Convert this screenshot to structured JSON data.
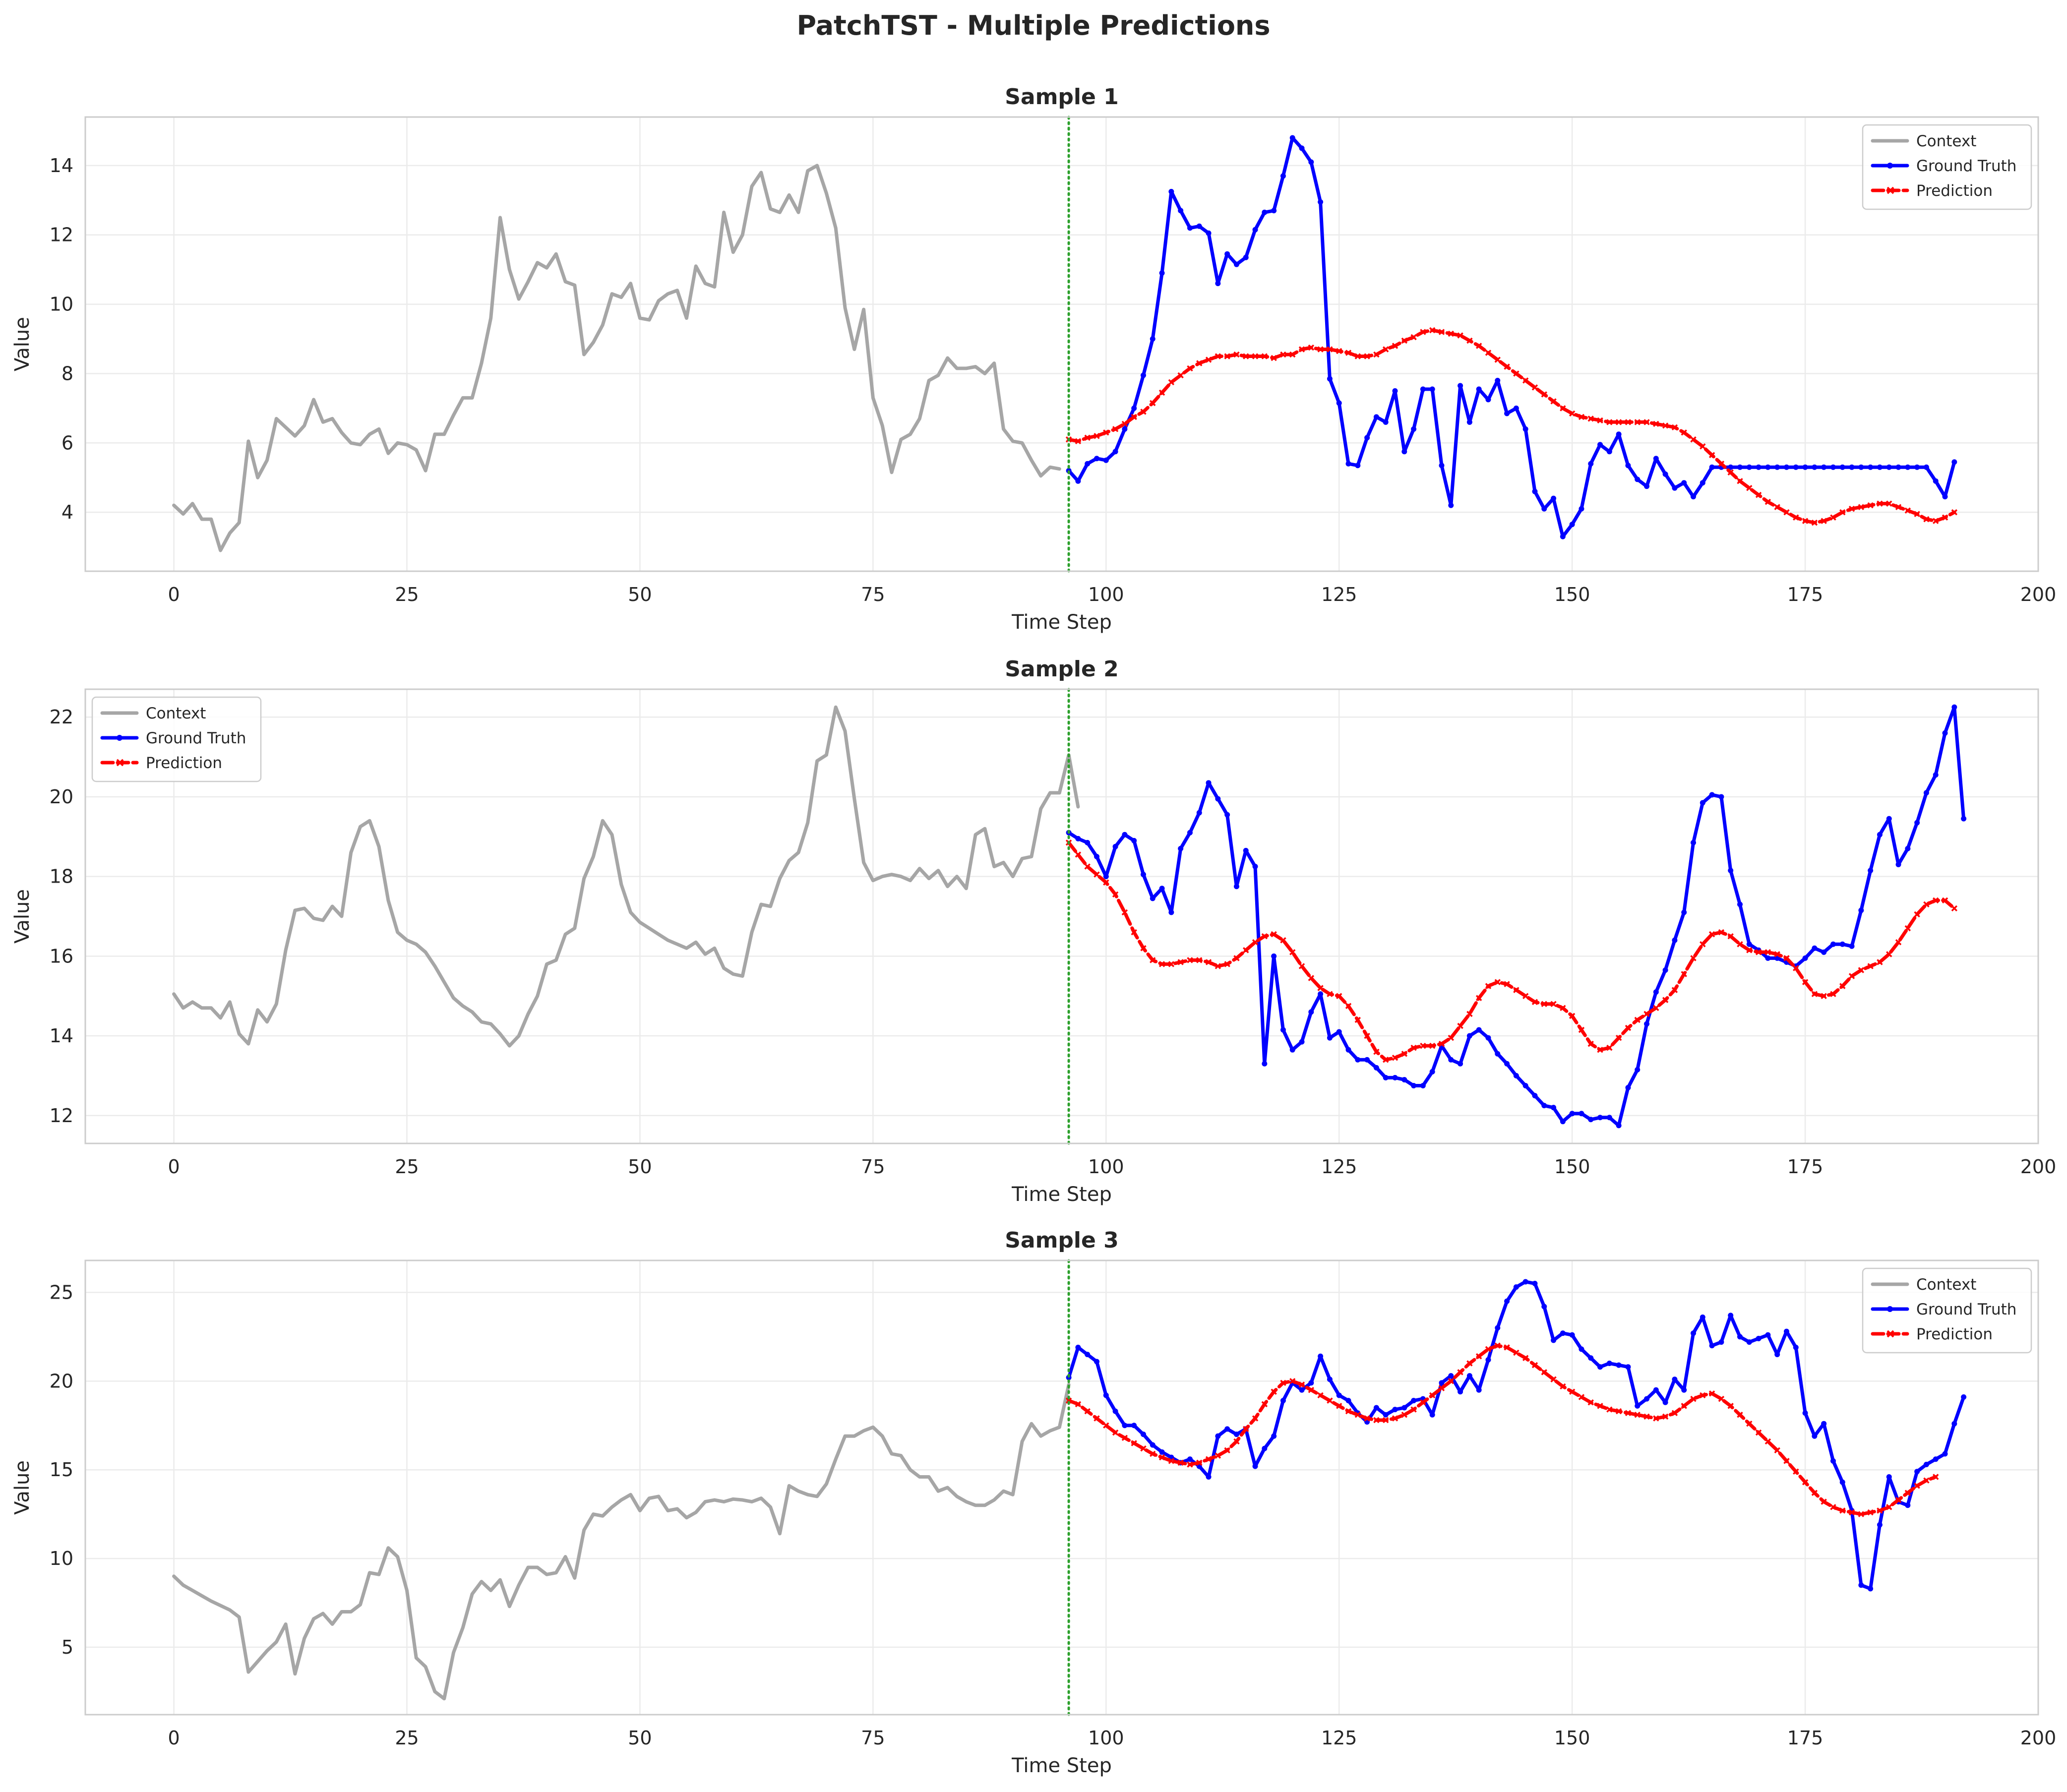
{
  "figure_title": "PatchTST - Multiple Predictions",
  "colors": {
    "context": "#a6a6a6",
    "ground_truth": "#0000ff",
    "prediction": "#ff0000",
    "forecast_start": "#2ca02c",
    "grid": "#ebebeb",
    "axes_edge": "#cccccc",
    "text": "#262626"
  },
  "chart_data": [
    {
      "type": "line",
      "title": "Sample 1",
      "xlabel": "Time Step",
      "ylabel": "Value",
      "xlim": [
        -9.5,
        200
      ],
      "ylim": [
        2.3,
        15.4
      ],
      "xticks": [
        0,
        25,
        50,
        75,
        100,
        125,
        150,
        175,
        200
      ],
      "yticks": [
        4,
        6,
        8,
        10,
        12,
        14
      ],
      "grid": true,
      "legend_position": "top-right",
      "forecast_start": 96,
      "series": [
        {
          "name": "Context",
          "style": "context",
          "x_start": 0,
          "values": [
            4.2,
            3.95,
            4.25,
            3.8,
            3.8,
            2.9,
            3.4,
            3.7,
            6.05,
            5.0,
            5.5,
            6.7,
            6.45,
            6.2,
            6.5,
            7.25,
            6.6,
            6.7,
            6.3,
            6.0,
            5.95,
            6.25,
            6.4,
            5.7,
            6.0,
            5.95,
            5.8,
            5.2,
            6.25,
            6.25,
            6.8,
            7.3,
            7.3,
            8.3,
            9.6,
            12.5,
            11.0,
            10.15,
            10.65,
            11.2,
            11.05,
            11.45,
            10.65,
            10.55,
            8.55,
            8.9,
            9.4,
            10.3,
            10.2,
            10.6,
            9.6,
            9.55,
            10.1,
            10.3,
            10.4,
            9.6,
            11.1,
            10.6,
            10.5,
            12.65,
            11.5,
            12.0,
            13.4,
            13.8,
            12.75,
            12.65,
            13.15,
            12.65,
            13.85,
            14.0,
            13.2,
            12.2,
            9.9,
            8.7,
            9.85,
            7.3,
            6.5,
            5.15,
            6.1,
            6.25,
            6.7,
            7.8,
            7.95,
            8.45,
            8.15,
            8.15,
            8.2,
            8.0,
            8.3,
            6.4,
            6.05,
            6.0,
            5.5,
            5.05,
            5.3,
            5.25
          ]
        },
        {
          "name": "Ground Truth",
          "style": "ground_truth",
          "x_start": 96,
          "values": [
            5.2,
            4.9,
            5.4,
            5.55,
            5.5,
            5.75,
            6.4,
            7.0,
            7.95,
            9.0,
            10.9,
            13.25,
            12.7,
            12.2,
            12.25,
            12.05,
            10.6,
            11.45,
            11.15,
            11.35,
            12.15,
            12.65,
            12.7,
            13.7,
            14.8,
            14.5,
            14.1,
            12.95,
            7.85,
            7.15,
            5.4,
            5.35,
            6.15,
            6.75,
            6.6,
            7.5,
            5.75,
            6.4,
            7.55,
            7.55,
            5.35,
            4.2,
            7.65,
            6.6,
            7.55,
            7.25,
            7.8,
            6.85,
            7.0,
            6.4,
            4.6,
            4.1,
            4.4,
            3.3,
            3.65,
            4.1,
            5.4,
            5.95,
            5.75,
            6.25,
            5.35,
            4.95,
            4.75,
            5.55,
            5.1,
            4.7,
            4.85,
            4.45,
            4.85,
            5.3,
            5.3,
            5.3,
            5.3,
            5.3,
            5.3,
            5.3,
            5.3,
            5.3,
            5.3,
            5.3,
            5.3,
            5.3,
            5.3,
            5.3,
            5.3,
            5.3,
            5.3,
            5.3,
            5.3,
            5.3,
            5.3,
            5.3,
            5.3,
            4.9,
            4.45,
            5.45
          ]
        },
        {
          "name": "Prediction",
          "style": "prediction",
          "x_start": 96,
          "values": [
            6.1,
            6.05,
            6.15,
            6.2,
            6.3,
            6.4,
            6.55,
            6.75,
            6.9,
            7.15,
            7.45,
            7.75,
            7.95,
            8.15,
            8.3,
            8.4,
            8.5,
            8.5,
            8.55,
            8.5,
            8.5,
            8.5,
            8.45,
            8.55,
            8.55,
            8.7,
            8.75,
            8.7,
            8.7,
            8.65,
            8.6,
            8.5,
            8.5,
            8.55,
            8.7,
            8.8,
            8.95,
            9.05,
            9.2,
            9.25,
            9.2,
            9.15,
            9.1,
            8.95,
            8.8,
            8.6,
            8.4,
            8.2,
            8.0,
            7.8,
            7.6,
            7.4,
            7.2,
            7.0,
            6.85,
            6.75,
            6.7,
            6.65,
            6.6,
            6.6,
            6.6,
            6.6,
            6.6,
            6.55,
            6.5,
            6.45,
            6.3,
            6.1,
            5.9,
            5.65,
            5.4,
            5.15,
            4.9,
            4.7,
            4.5,
            4.3,
            4.15,
            4.0,
            3.85,
            3.75,
            3.7,
            3.75,
            3.85,
            4.0,
            4.1,
            4.15,
            4.2,
            4.25,
            4.25,
            4.15,
            4.05,
            3.95,
            3.8,
            3.75,
            3.85,
            4.0
          ]
        }
      ]
    },
    {
      "type": "line",
      "title": "Sample 2",
      "xlabel": "Time Step",
      "ylabel": "Value",
      "xlim": [
        -9.5,
        200
      ],
      "ylim": [
        11.3,
        22.7
      ],
      "xticks": [
        0,
        25,
        50,
        75,
        100,
        125,
        150,
        175,
        200
      ],
      "yticks": [
        12,
        14,
        16,
        18,
        20,
        22
      ],
      "grid": true,
      "legend_position": "top-left",
      "forecast_start": 96,
      "series": [
        {
          "name": "Context",
          "style": "context",
          "x_start": 0,
          "values": [
            15.05,
            14.7,
            14.85,
            14.7,
            14.7,
            14.45,
            14.85,
            14.05,
            13.8,
            14.65,
            14.35,
            14.8,
            16.15,
            17.15,
            17.2,
            16.95,
            16.9,
            17.25,
            17.0,
            18.6,
            19.25,
            19.4,
            18.75,
            17.4,
            16.6,
            16.4,
            16.3,
            16.1,
            15.75,
            15.35,
            14.95,
            14.75,
            14.6,
            14.35,
            14.3,
            14.05,
            13.75,
            14.0,
            14.55,
            15.0,
            15.8,
            15.9,
            16.55,
            16.7,
            17.95,
            18.5,
            19.4,
            19.05,
            17.8,
            17.1,
            16.85,
            16.7,
            16.55,
            16.4,
            16.3,
            16.2,
            16.35,
            16.05,
            16.2,
            15.7,
            15.55,
            15.5,
            16.6,
            17.3,
            17.25,
            17.95,
            18.4,
            18.6,
            19.35,
            20.9,
            21.05,
            22.25,
            21.65,
            19.95,
            18.35,
            17.9,
            18.0,
            18.05,
            18.0,
            17.9,
            18.2,
            17.95,
            18.15,
            17.75,
            18.0,
            17.7,
            19.05,
            19.2,
            18.25,
            18.35,
            18.0,
            18.45,
            18.5,
            19.7,
            20.1,
            20.1,
            21.05,
            19.75
          ]
        },
        {
          "name": "Ground Truth",
          "style": "ground_truth",
          "x_start": 96,
          "values": [
            19.1,
            18.95,
            18.85,
            18.5,
            18.0,
            18.75,
            19.05,
            18.9,
            18.05,
            17.45,
            17.7,
            17.1,
            18.7,
            19.1,
            19.6,
            20.35,
            19.95,
            19.55,
            17.75,
            18.65,
            18.25,
            13.3,
            16.0,
            14.15,
            13.65,
            13.85,
            14.6,
            15.05,
            13.95,
            14.1,
            13.65,
            13.4,
            13.4,
            13.2,
            12.95,
            12.95,
            12.9,
            12.75,
            12.75,
            13.1,
            13.75,
            13.4,
            13.3,
            14.0,
            14.15,
            13.95,
            13.55,
            13.3,
            13.0,
            12.75,
            12.5,
            12.25,
            12.2,
            11.85,
            12.05,
            12.05,
            11.9,
            11.95,
            11.95,
            11.75,
            12.7,
            13.15,
            14.3,
            15.1,
            15.65,
            16.4,
            17.1,
            18.85,
            19.85,
            20.05,
            20.0,
            18.15,
            17.3,
            16.3,
            16.15,
            15.95,
            15.95,
            15.85,
            15.75,
            15.95,
            16.2,
            16.1,
            16.3,
            16.3,
            16.25,
            17.15,
            18.15,
            19.05,
            19.45,
            18.3,
            18.7,
            19.35,
            20.1,
            20.55,
            21.6,
            22.25,
            19.45
          ]
        },
        {
          "name": "Prediction",
          "style": "prediction",
          "x_start": 96,
          "values": [
            18.85,
            18.55,
            18.25,
            18.05,
            17.85,
            17.55,
            17.1,
            16.6,
            16.2,
            15.9,
            15.8,
            15.8,
            15.85,
            15.9,
            15.9,
            15.85,
            15.75,
            15.8,
            15.95,
            16.15,
            16.35,
            16.5,
            16.55,
            16.4,
            16.1,
            15.75,
            15.45,
            15.2,
            15.05,
            15.0,
            14.75,
            14.4,
            14.0,
            13.6,
            13.4,
            13.45,
            13.55,
            13.7,
            13.75,
            13.75,
            13.8,
            13.95,
            14.25,
            14.55,
            14.95,
            15.25,
            15.35,
            15.3,
            15.15,
            15.0,
            14.85,
            14.8,
            14.8,
            14.7,
            14.5,
            14.15,
            13.8,
            13.65,
            13.7,
            13.95,
            14.2,
            14.4,
            14.55,
            14.7,
            14.9,
            15.15,
            15.55,
            15.95,
            16.3,
            16.55,
            16.6,
            16.5,
            16.3,
            16.15,
            16.1,
            16.1,
            16.05,
            15.95,
            15.7,
            15.35,
            15.05,
            15.0,
            15.05,
            15.25,
            15.5,
            15.65,
            15.75,
            15.85,
            16.05,
            16.35,
            16.7,
            17.05,
            17.3,
            17.4,
            17.4,
            17.2
          ]
        }
      ]
    },
    {
      "type": "line",
      "title": "Sample 3",
      "xlabel": "Time Step",
      "ylabel": "Value",
      "xlim": [
        -9.5,
        200
      ],
      "ylim": [
        1.2,
        26.8
      ],
      "xticks": [
        0,
        25,
        50,
        75,
        100,
        125,
        150,
        175,
        200
      ],
      "yticks": [
        5,
        10,
        15,
        20,
        25
      ],
      "grid": true,
      "legend_position": "top-right",
      "forecast_start": 96,
      "series": [
        {
          "name": "Context",
          "style": "context",
          "x_start": 0,
          "values": [
            9.0,
            8.5,
            8.2,
            7.9,
            7.6,
            7.35,
            7.1,
            6.7,
            3.6,
            4.2,
            4.8,
            5.3,
            6.3,
            3.5,
            5.5,
            6.6,
            6.9,
            6.3,
            7.0,
            7.0,
            7.4,
            9.2,
            9.1,
            10.6,
            10.1,
            8.2,
            4.4,
            3.9,
            2.5,
            2.1,
            4.7,
            6.1,
            8.0,
            8.7,
            8.2,
            8.8,
            7.3,
            8.5,
            9.5,
            9.5,
            9.1,
            9.2,
            10.1,
            8.9,
            11.6,
            12.5,
            12.4,
            12.9,
            13.3,
            13.6,
            12.7,
            13.4,
            13.5,
            12.7,
            12.8,
            12.3,
            12.6,
            13.2,
            13.3,
            13.2,
            13.35,
            13.3,
            13.2,
            13.4,
            12.9,
            11.4,
            14.1,
            13.8,
            13.6,
            13.5,
            14.2,
            15.6,
            16.9,
            16.9,
            17.2,
            17.4,
            16.9,
            15.9,
            15.8,
            15.0,
            14.6,
            14.6,
            13.8,
            14.0,
            13.5,
            13.2,
            13.0,
            13.0,
            13.3,
            13.8,
            13.6,
            16.6,
            17.6,
            16.9,
            17.2,
            17.4,
            19.8
          ]
        },
        {
          "name": "Ground Truth",
          "style": "ground_truth",
          "x_start": 96,
          "values": [
            20.2,
            21.9,
            21.5,
            21.1,
            19.2,
            18.3,
            17.5,
            17.5,
            17.0,
            16.4,
            16.0,
            15.7,
            15.4,
            15.6,
            15.2,
            14.6,
            16.9,
            17.3,
            17.0,
            17.3,
            15.2,
            16.2,
            16.9,
            18.9,
            19.9,
            19.5,
            19.9,
            21.4,
            20.1,
            19.2,
            18.9,
            18.2,
            17.7,
            18.5,
            18.1,
            18.4,
            18.5,
            18.9,
            19.0,
            18.1,
            19.9,
            20.3,
            19.4,
            20.3,
            19.5,
            21.2,
            23.0,
            24.5,
            25.3,
            25.6,
            25.5,
            24.2,
            22.3,
            22.7,
            22.6,
            21.8,
            21.3,
            20.8,
            21.0,
            20.9,
            20.8,
            18.6,
            19.0,
            19.5,
            18.8,
            20.1,
            19.5,
            22.7,
            23.6,
            22.0,
            22.2,
            23.7,
            22.5,
            22.2,
            22.4,
            22.6,
            21.5,
            22.8,
            21.9,
            18.2,
            16.9,
            17.6,
            15.5,
            14.3,
            12.7,
            8.5,
            8.3,
            11.9,
            14.6,
            13.2,
            13.0,
            14.9,
            15.3,
            15.6,
            15.9,
            17.6,
            19.1
          ]
        },
        {
          "name": "Prediction",
          "style": "prediction",
          "x_start": 96,
          "values": [
            18.9,
            18.7,
            18.3,
            17.9,
            17.5,
            17.1,
            16.8,
            16.5,
            16.2,
            15.9,
            15.7,
            15.5,
            15.4,
            15.3,
            15.4,
            15.6,
            15.8,
            16.1,
            16.6,
            17.3,
            17.9,
            18.7,
            19.4,
            19.9,
            20.0,
            19.8,
            19.5,
            19.2,
            18.9,
            18.6,
            18.3,
            18.1,
            17.9,
            17.8,
            17.8,
            17.9,
            18.1,
            18.4,
            18.8,
            19.2,
            19.6,
            20.0,
            20.5,
            21.0,
            21.4,
            21.8,
            22.0,
            21.9,
            21.6,
            21.3,
            20.9,
            20.5,
            20.1,
            19.7,
            19.4,
            19.1,
            18.8,
            18.6,
            18.4,
            18.3,
            18.2,
            18.1,
            18.0,
            17.9,
            18.0,
            18.2,
            18.6,
            19.0,
            19.2,
            19.3,
            19.0,
            18.6,
            18.1,
            17.6,
            17.1,
            16.6,
            16.1,
            15.5,
            14.9,
            14.3,
            13.7,
            13.2,
            12.9,
            12.7,
            12.6,
            12.5,
            12.6,
            12.7,
            12.9,
            13.3,
            13.7,
            14.1,
            14.4,
            14.6
          ]
        }
      ]
    }
  ]
}
